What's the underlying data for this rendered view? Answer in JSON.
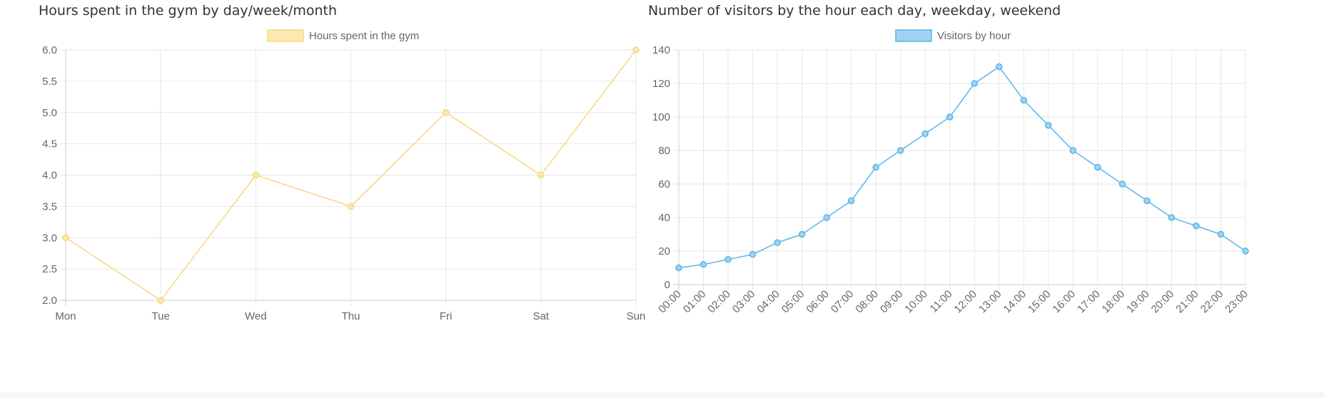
{
  "chart_data": [
    {
      "type": "line",
      "title": "Hours spent in the gym by day/week/month",
      "categories": [
        "Mon",
        "Tue",
        "Wed",
        "Thu",
        "Fri",
        "Sat",
        "Sun"
      ],
      "series": [
        {
          "name": "Hours spent in the gym",
          "values": [
            3,
            2,
            4,
            3.5,
            5,
            4,
            6
          ],
          "color": "#f9d77e",
          "fill": "#fce8b2"
        }
      ],
      "ylim": [
        2,
        6
      ],
      "yticks": [
        "2.0",
        "2.5",
        "3.0",
        "3.5",
        "4.0",
        "4.5",
        "5.0",
        "5.5",
        "6.0"
      ],
      "grid": true,
      "legend": "top-center"
    },
    {
      "type": "line",
      "title": "Number of visitors by the hour each day, weekday, weekend",
      "categories": [
        "00:00",
        "01:00",
        "02:00",
        "03:00",
        "04:00",
        "05:00",
        "06:00",
        "07:00",
        "08:00",
        "09:00",
        "10:00",
        "11:00",
        "12:00",
        "13:00",
        "14:00",
        "15:00",
        "16:00",
        "17:00",
        "18:00",
        "19:00",
        "20:00",
        "21:00",
        "22:00",
        "23:00"
      ],
      "series": [
        {
          "name": "Visitors by hour",
          "values": [
            10,
            12,
            15,
            18,
            25,
            30,
            40,
            50,
            70,
            80,
            90,
            100,
            120,
            130,
            110,
            95,
            80,
            70,
            60,
            50,
            40,
            35,
            30,
            20
          ],
          "color": "#5ab4e8",
          "fill": "#9fd3f3"
        }
      ],
      "ylim": [
        0,
        140
      ],
      "yticks": [
        "0",
        "20",
        "40",
        "60",
        "80",
        "100",
        "120",
        "140"
      ],
      "grid": true,
      "legend": "top-center"
    }
  ]
}
